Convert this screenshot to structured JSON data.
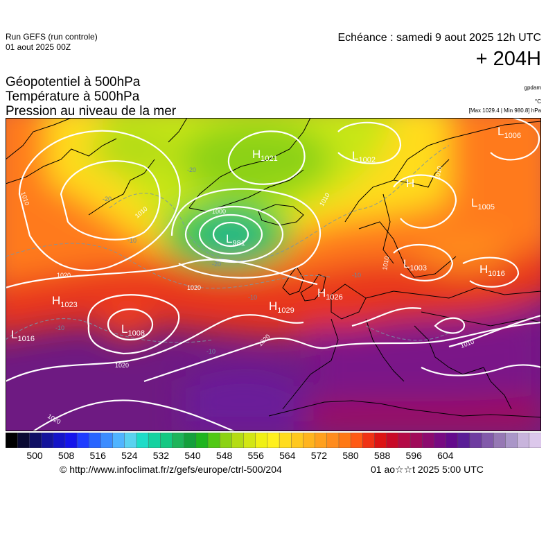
{
  "header": {
    "run_label": "Run GEFS (run controle)",
    "run_date": "01 aout 2025 00Z",
    "echeance": "Echéance : samedi 9 aout 2025 12h UTC",
    "lead_time": "+ 204H"
  },
  "layers": {
    "geopotential": "Géopotentiel à 500hPa",
    "temperature": "Température à 500hPa",
    "pressure": "Pression au niveau de la mer"
  },
  "units": {
    "geopotential": "gpdam",
    "temperature": "°C",
    "pressure_range": "[Max 1029.4 | Min 980.8] hPa"
  },
  "pressure_centers": [
    {
      "type": "H",
      "value": "1021"
    },
    {
      "type": "L",
      "value": "1002"
    },
    {
      "type": "L",
      "value": "1006"
    },
    {
      "type": "H",
      "value": ""
    },
    {
      "type": "L",
      "value": "1005"
    },
    {
      "type": "L",
      "value": "981"
    },
    {
      "type": "L",
      "value": "1003"
    },
    {
      "type": "H",
      "value": "1016"
    },
    {
      "type": "H",
      "value": "1023"
    },
    {
      "type": "H",
      "value": "1029"
    },
    {
      "type": "H",
      "value": "1026"
    },
    {
      "type": "L",
      "value": "1008"
    },
    {
      "type": "L",
      "value": "1016"
    }
  ],
  "isobar_labels": [
    "1010",
    "1010",
    "1000",
    "1010",
    "1020",
    "1020",
    "1020",
    "1020",
    "1010",
    "1010",
    "1020",
    "1010"
  ],
  "temperature_labels": [
    "-20",
    "-20",
    "-20",
    "-10",
    "-10",
    "-10",
    "-10",
    "-10"
  ],
  "colorbar": {
    "ticks": [
      "500",
      "508",
      "516",
      "524",
      "532",
      "540",
      "548",
      "556",
      "564",
      "572",
      "580",
      "588",
      "596",
      "604"
    ],
    "colors": [
      "#000000",
      "#0a0a32",
      "#0f0f64",
      "#14149b",
      "#1414c8",
      "#1414eb",
      "#1e3cff",
      "#2864ff",
      "#3c8cff",
      "#50b4ff",
      "#5ad2f0",
      "#1edcc8",
      "#14d2a0",
      "#14c882",
      "#1eb45a",
      "#14a03c",
      "#1eb41e",
      "#50c814",
      "#8cd214",
      "#b4dc14",
      "#d2e614",
      "#f0f014",
      "#fff01e",
      "#ffdc1e",
      "#ffc81e",
      "#ffb41e",
      "#ffa01e",
      "#ff8c1e",
      "#ff7814",
      "#ff5a14",
      "#f03214",
      "#dc1414",
      "#c80a28",
      "#b40a46",
      "#a00a5a",
      "#8c0a6e",
      "#780a82",
      "#640a8c",
      "#5a1e96",
      "#6e3ca0",
      "#825aaa",
      "#9678b4",
      "#aa96c8",
      "#c8b4dc",
      "#dcc8eb"
    ]
  },
  "footer": {
    "source": "© http://www.infoclimat.fr/z/gefs/europe/ctrl-500/204",
    "generated": "01 ao☆☆t 2025  5:00 UTC"
  }
}
